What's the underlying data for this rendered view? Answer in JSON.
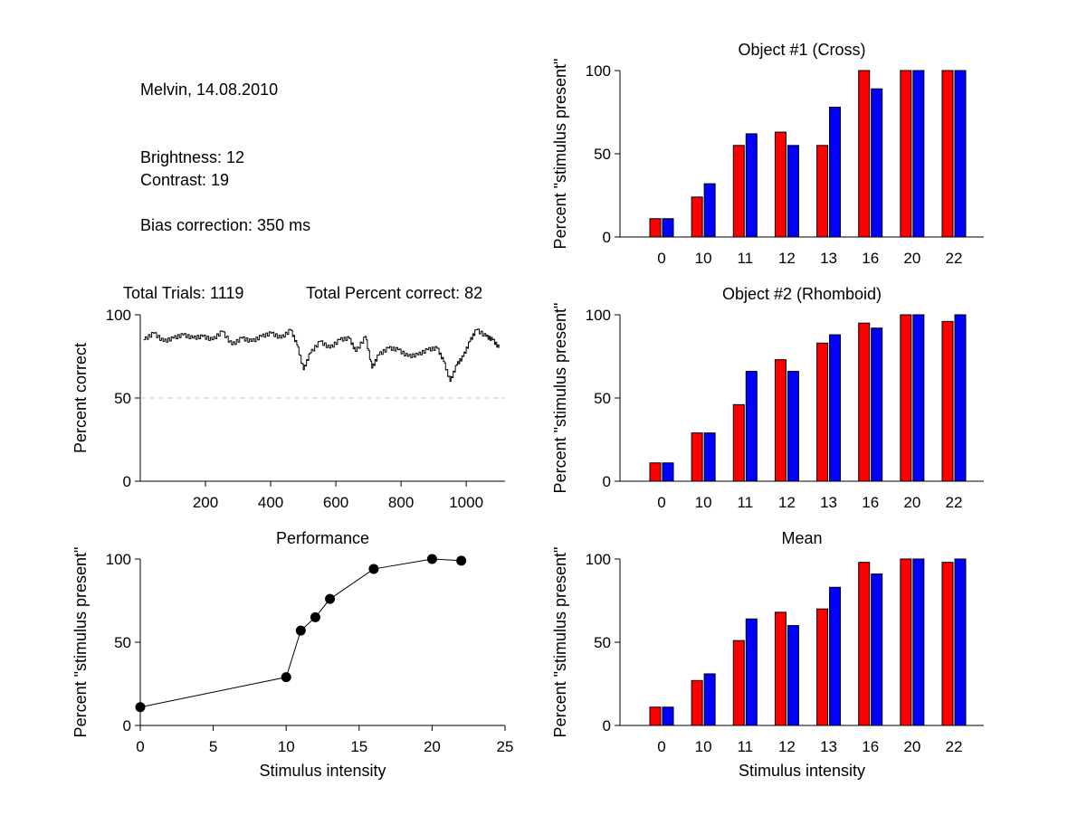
{
  "info": {
    "subject_date": "Melvin, 14.08.2010",
    "brightness": "Brightness: 12",
    "contrast": "Contrast: 19",
    "bias": "Bias correction: 350 ms"
  },
  "colors": {
    "red": "#ff0000",
    "blue": "#0000ff",
    "line": "#000000",
    "chance_line": "#c8c8c8"
  },
  "chart_data": [
    {
      "id": "obj1",
      "type": "bar",
      "title": "Object #1 (Cross)",
      "xlabel": "",
      "ylabel": "Percent \"stimulus present\"",
      "categories": [
        "0",
        "10",
        "11",
        "12",
        "13",
        "16",
        "20",
        "22"
      ],
      "ylim": [
        0,
        100
      ],
      "yticks": [
        0,
        50,
        100
      ],
      "series": [
        {
          "color": "#ff0000",
          "values": [
            11,
            24,
            55,
            63,
            55,
            100,
            100,
            100
          ]
        },
        {
          "color": "#0000ff",
          "values": [
            11,
            32,
            62,
            55,
            78,
            89,
            100,
            100
          ]
        }
      ]
    },
    {
      "id": "obj2",
      "type": "bar",
      "title": "Object #2 (Rhomboid)",
      "xlabel": "",
      "ylabel": "Percent \"stimulus present\"",
      "categories": [
        "0",
        "10",
        "11",
        "12",
        "13",
        "16",
        "20",
        "22"
      ],
      "ylim": [
        0,
        100
      ],
      "yticks": [
        0,
        50,
        100
      ],
      "series": [
        {
          "color": "#ff0000",
          "values": [
            11,
            29,
            46,
            73,
            83,
            95,
            100,
            96
          ]
        },
        {
          "color": "#0000ff",
          "values": [
            11,
            29,
            66,
            66,
            88,
            92,
            100,
            100
          ]
        }
      ]
    },
    {
      "id": "mean",
      "type": "bar",
      "title": "Mean",
      "xlabel": "Stimulus intensity",
      "ylabel": "Percent \"stimulus present\"",
      "categories": [
        "0",
        "10",
        "11",
        "12",
        "13",
        "16",
        "20",
        "22"
      ],
      "ylim": [
        0,
        100
      ],
      "yticks": [
        0,
        50,
        100
      ],
      "series": [
        {
          "color": "#ff0000",
          "values": [
            11,
            27,
            51,
            68,
            70,
            98,
            100,
            98
          ]
        },
        {
          "color": "#0000ff",
          "values": [
            11,
            31,
            64,
            60,
            83,
            91,
            100,
            100
          ]
        }
      ]
    },
    {
      "id": "trials",
      "type": "line",
      "title": "",
      "header_left": "Total Trials: 1119",
      "header_right": "Total Percent correct: 82",
      "xlabel": "",
      "ylabel": "Percent correct",
      "xlim": [
        0,
        1119
      ],
      "xticks": [
        200,
        400,
        600,
        800,
        1000
      ],
      "ylim": [
        0,
        100
      ],
      "yticks": [
        0,
        50,
        100
      ],
      "chance_level": 50,
      "x": [
        10,
        40,
        70,
        100,
        130,
        160,
        190,
        220,
        250,
        280,
        310,
        340,
        370,
        400,
        430,
        460,
        480,
        500,
        520,
        550,
        580,
        610,
        640,
        660,
        690,
        710,
        730,
        760,
        790,
        820,
        850,
        880,
        910,
        930,
        950,
        970,
        990,
        1010,
        1030,
        1060,
        1080,
        1100
      ],
      "y": [
        85,
        89,
        84,
        86,
        88,
        86,
        87,
        85,
        90,
        82,
        86,
        84,
        87,
        89,
        86,
        91,
        82,
        67,
        77,
        84,
        80,
        85,
        86,
        78,
        87,
        68,
        76,
        80,
        79,
        75,
        76,
        79,
        80,
        72,
        60,
        70,
        75,
        84,
        91,
        87,
        85,
        80
      ]
    },
    {
      "id": "performance",
      "type": "line",
      "title": "Performance",
      "xlabel": "Stimulus intensity",
      "ylabel": "Percent \"stimulus present\"",
      "xlim": [
        0,
        25
      ],
      "xticks": [
        0,
        5,
        10,
        15,
        20,
        25
      ],
      "ylim": [
        0,
        100
      ],
      "yticks": [
        0,
        50,
        100
      ],
      "x": [
        0,
        10,
        11,
        12,
        13,
        16,
        20,
        22
      ],
      "y": [
        11,
        29,
        57,
        65,
        76,
        94,
        100,
        99
      ]
    }
  ]
}
